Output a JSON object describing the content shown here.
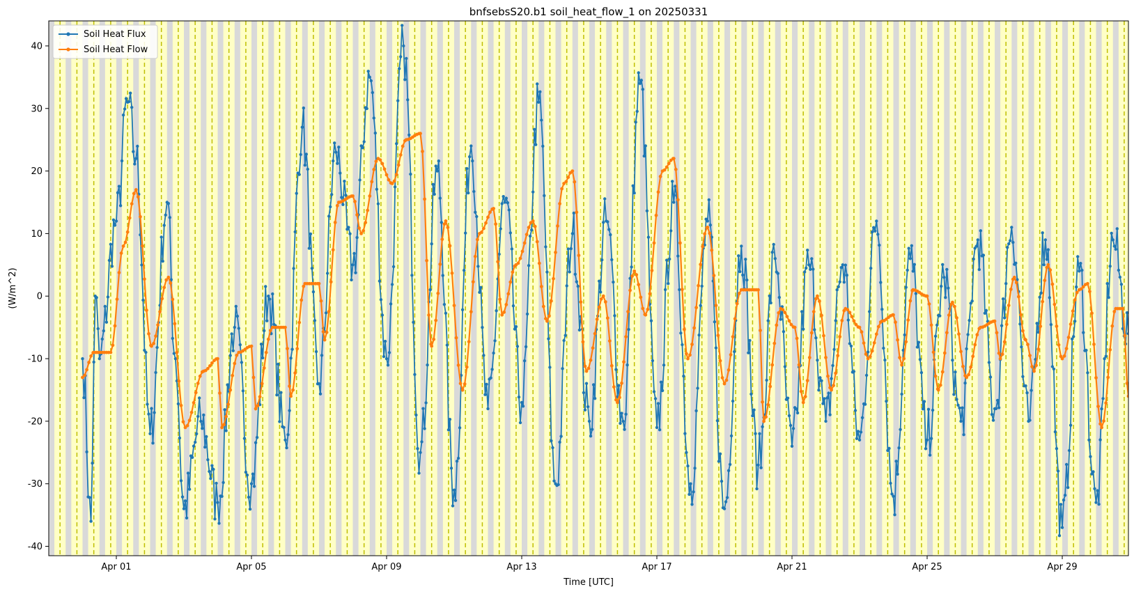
{
  "chart_data": {
    "type": "line",
    "title": "bnfsebsS20.b1 soil_heat_flow_1 on 20250331",
    "xlabel": "Time [UTC]",
    "ylabel": "(W/m^2)",
    "xlim": [
      "2025-03-30T00:00",
      "2025-04-30T23:00"
    ],
    "ylim": [
      -41.5,
      44
    ],
    "x_ticks": [
      "Apr 01",
      "Apr 05",
      "Apr 09",
      "Apr 13",
      "Apr 17",
      "Apr 21",
      "Apr 25",
      "Apr 29"
    ],
    "y_ticks": [
      -40,
      -30,
      -20,
      -10,
      0,
      10,
      20,
      30,
      40
    ],
    "legend_position": "top-left",
    "background_shading": "night periods shaded gray, daytime shaded light yellow, dashed olive lines at solar noon",
    "colors": {
      "flux": "#1f77b4",
      "flow": "#ff7f0e",
      "night": "#d9d9d9",
      "day": "#ffffc6",
      "noon_line": "#bfbf00"
    },
    "series": [
      {
        "name": "Soil Heat Flux",
        "color": "#1f77b4",
        "points": [
          [
            "2025-03-31T00:00",
            -10
          ],
          [
            "2025-03-31T06:00",
            -36
          ],
          [
            "2025-03-31T09:00",
            0
          ],
          [
            "2025-03-31T12:00",
            -10
          ],
          [
            "2025-04-01T00:00",
            12
          ],
          [
            "2025-04-01T08:00",
            31
          ],
          [
            "2025-04-01T14:00",
            22
          ],
          [
            "2025-04-02T00:00",
            -22
          ],
          [
            "2025-04-02T12:00",
            15
          ],
          [
            "2025-04-02T18:00",
            -10
          ],
          [
            "2025-04-03T00:00",
            -34
          ],
          [
            "2025-04-03T12:00",
            -20
          ],
          [
            "2025-04-04T00:00",
            -33
          ],
          [
            "2025-04-04T12:00",
            -5
          ],
          [
            "2025-04-05T00:00",
            -30
          ],
          [
            "2025-04-05T12:00",
            0
          ],
          [
            "2025-04-06T00:00",
            -23
          ],
          [
            "2025-04-06T12:00",
            27
          ],
          [
            "2025-04-07T00:00",
            -14
          ],
          [
            "2025-04-07T12:00",
            23
          ],
          [
            "2025-04-08T00:00",
            5
          ],
          [
            "2025-04-08T12:00",
            35
          ],
          [
            "2025-04-09T00:00",
            -10
          ],
          [
            "2025-04-09T12:00",
            40
          ],
          [
            "2025-04-10T00:00",
            -25
          ],
          [
            "2025-04-10T12:00",
            20
          ],
          [
            "2025-04-11T00:00",
            -31
          ],
          [
            "2025-04-11T12:00",
            24
          ],
          [
            "2025-04-12T00:00",
            -18
          ],
          [
            "2025-04-12T12:00",
            15
          ],
          [
            "2025-04-13T00:00",
            -17
          ],
          [
            "2025-04-13T12:00",
            31
          ],
          [
            "2025-04-14T00:00",
            -30
          ],
          [
            "2025-04-14T12:00",
            10
          ],
          [
            "2025-04-15T00:00",
            -20
          ],
          [
            "2025-04-15T12:00",
            12
          ],
          [
            "2025-04-16T00:00",
            -20
          ],
          [
            "2025-04-16T12:00",
            34
          ],
          [
            "2025-04-17T00:00",
            -21
          ],
          [
            "2025-04-17T12:00",
            15
          ],
          [
            "2025-04-18T00:00",
            -30
          ],
          [
            "2025-04-18T12:00",
            12
          ],
          [
            "2025-04-19T00:00",
            -34
          ],
          [
            "2025-04-19T12:00",
            8
          ],
          [
            "2025-04-20T00:00",
            -27
          ],
          [
            "2025-04-20T12:00",
            6
          ],
          [
            "2025-04-21T00:00",
            -24
          ],
          [
            "2025-04-21T12:00",
            5
          ],
          [
            "2025-04-22T00:00",
            -20
          ],
          [
            "2025-04-22T12:00",
            5
          ],
          [
            "2025-04-23T00:00",
            -23
          ],
          [
            "2025-04-23T12:00",
            12
          ],
          [
            "2025-04-24T00:00",
            -32
          ],
          [
            "2025-04-24T12:00",
            6
          ],
          [
            "2025-04-25T00:00",
            -23
          ],
          [
            "2025-04-25T12:00",
            3
          ],
          [
            "2025-04-26T00:00",
            -20
          ],
          [
            "2025-04-26T12:00",
            9
          ],
          [
            "2025-04-27T00:00",
            -18
          ],
          [
            "2025-04-27T12:00",
            11
          ],
          [
            "2025-04-28T00:00",
            -20
          ],
          [
            "2025-04-28T12:00",
            9
          ],
          [
            "2025-04-29T00:00",
            -37
          ],
          [
            "2025-04-29T12:00",
            4
          ],
          [
            "2025-04-30T00:00",
            -33
          ],
          [
            "2025-04-30T12:00",
            9
          ],
          [
            "2025-04-30T23:00",
            -6
          ]
        ]
      },
      {
        "name": "Soil Heat Flow",
        "color": "#ff7f0e",
        "points": [
          [
            "2025-03-31T00:00",
            -13
          ],
          [
            "2025-03-31T08:00",
            -9
          ],
          [
            "2025-03-31T20:00",
            -9
          ],
          [
            "2025-04-01T05:00",
            8
          ],
          [
            "2025-04-01T14:00",
            17
          ],
          [
            "2025-04-02T01:00",
            -8
          ],
          [
            "2025-04-02T13:00",
            3
          ],
          [
            "2025-04-03T01:00",
            -21
          ],
          [
            "2025-04-03T14:00",
            -12
          ],
          [
            "2025-04-04T00:00",
            -10
          ],
          [
            "2025-04-04T03:00",
            -21
          ],
          [
            "2025-04-04T15:00",
            -9
          ],
          [
            "2025-04-05T00:00",
            -8
          ],
          [
            "2025-04-05T03:00",
            -18
          ],
          [
            "2025-04-05T15:00",
            -5
          ],
          [
            "2025-04-06T00:00",
            -5
          ],
          [
            "2025-04-06T04:00",
            -16
          ],
          [
            "2025-04-06T14:00",
            2
          ],
          [
            "2025-04-07T00:00",
            2
          ],
          [
            "2025-04-07T04:00",
            -7
          ],
          [
            "2025-04-07T14:00",
            15
          ],
          [
            "2025-04-08T00:00",
            16
          ],
          [
            "2025-04-08T06:00",
            10
          ],
          [
            "2025-04-08T18:00",
            22
          ],
          [
            "2025-04-09T04:00",
            18
          ],
          [
            "2025-04-09T14:00",
            25
          ],
          [
            "2025-04-10T00:00",
            26
          ],
          [
            "2025-04-10T08:00",
            -8
          ],
          [
            "2025-04-10T18:00",
            12
          ],
          [
            "2025-04-11T06:00",
            -15
          ],
          [
            "2025-04-11T18:00",
            10
          ],
          [
            "2025-04-12T04:00",
            14
          ],
          [
            "2025-04-12T10:00",
            -3
          ],
          [
            "2025-04-12T20:00",
            5
          ],
          [
            "2025-04-13T08:00",
            12
          ],
          [
            "2025-04-13T18:00",
            -4
          ],
          [
            "2025-04-14T06:00",
            18
          ],
          [
            "2025-04-14T12:00",
            20
          ],
          [
            "2025-04-14T22:00",
            -12
          ],
          [
            "2025-04-15T10:00",
            0
          ],
          [
            "2025-04-15T20:00",
            -17
          ],
          [
            "2025-04-16T08:00",
            4
          ],
          [
            "2025-04-16T16:00",
            -3
          ],
          [
            "2025-04-17T04:00",
            20
          ],
          [
            "2025-04-17T12:00",
            22
          ],
          [
            "2025-04-17T22:00",
            -10
          ],
          [
            "2025-04-18T12:00",
            11
          ],
          [
            "2025-04-19T00:00",
            -14
          ],
          [
            "2025-04-19T12:00",
            1
          ],
          [
            "2025-04-20T00:00",
            1
          ],
          [
            "2025-04-20T04:00",
            -20
          ],
          [
            "2025-04-20T16:00",
            -2
          ],
          [
            "2025-04-21T02:00",
            -5
          ],
          [
            "2025-04-21T08:00",
            -17
          ],
          [
            "2025-04-21T18:00",
            0
          ],
          [
            "2025-04-22T04:00",
            -15
          ],
          [
            "2025-04-22T14:00",
            -2
          ],
          [
            "2025-04-23T00:00",
            -5
          ],
          [
            "2025-04-23T06:00",
            -10
          ],
          [
            "2025-04-23T16:00",
            -4
          ],
          [
            "2025-04-24T00:00",
            -3
          ],
          [
            "2025-04-24T06:00",
            -11
          ],
          [
            "2025-04-24T14:00",
            1
          ],
          [
            "2025-04-25T00:00",
            0
          ],
          [
            "2025-04-25T08:00",
            -15
          ],
          [
            "2025-04-25T18:00",
            -1
          ],
          [
            "2025-04-26T04:00",
            -13
          ],
          [
            "2025-04-26T14:00",
            -5
          ],
          [
            "2025-04-27T00:00",
            -4
          ],
          [
            "2025-04-27T04:00",
            -10
          ],
          [
            "2025-04-27T14:00",
            3
          ],
          [
            "2025-04-27T22:00",
            -7
          ],
          [
            "2025-04-28T04:00",
            -12
          ],
          [
            "2025-04-28T14:00",
            5
          ],
          [
            "2025-04-29T00:00",
            -10
          ],
          [
            "2025-04-29T12:00",
            1
          ],
          [
            "2025-04-29T18:00",
            2
          ],
          [
            "2025-04-30T04:00",
            -21
          ],
          [
            "2025-04-30T14:00",
            -2
          ],
          [
            "2025-04-30T19:00",
            -2
          ],
          [
            "2025-04-30T23:00",
            -16
          ]
        ]
      }
    ]
  }
}
